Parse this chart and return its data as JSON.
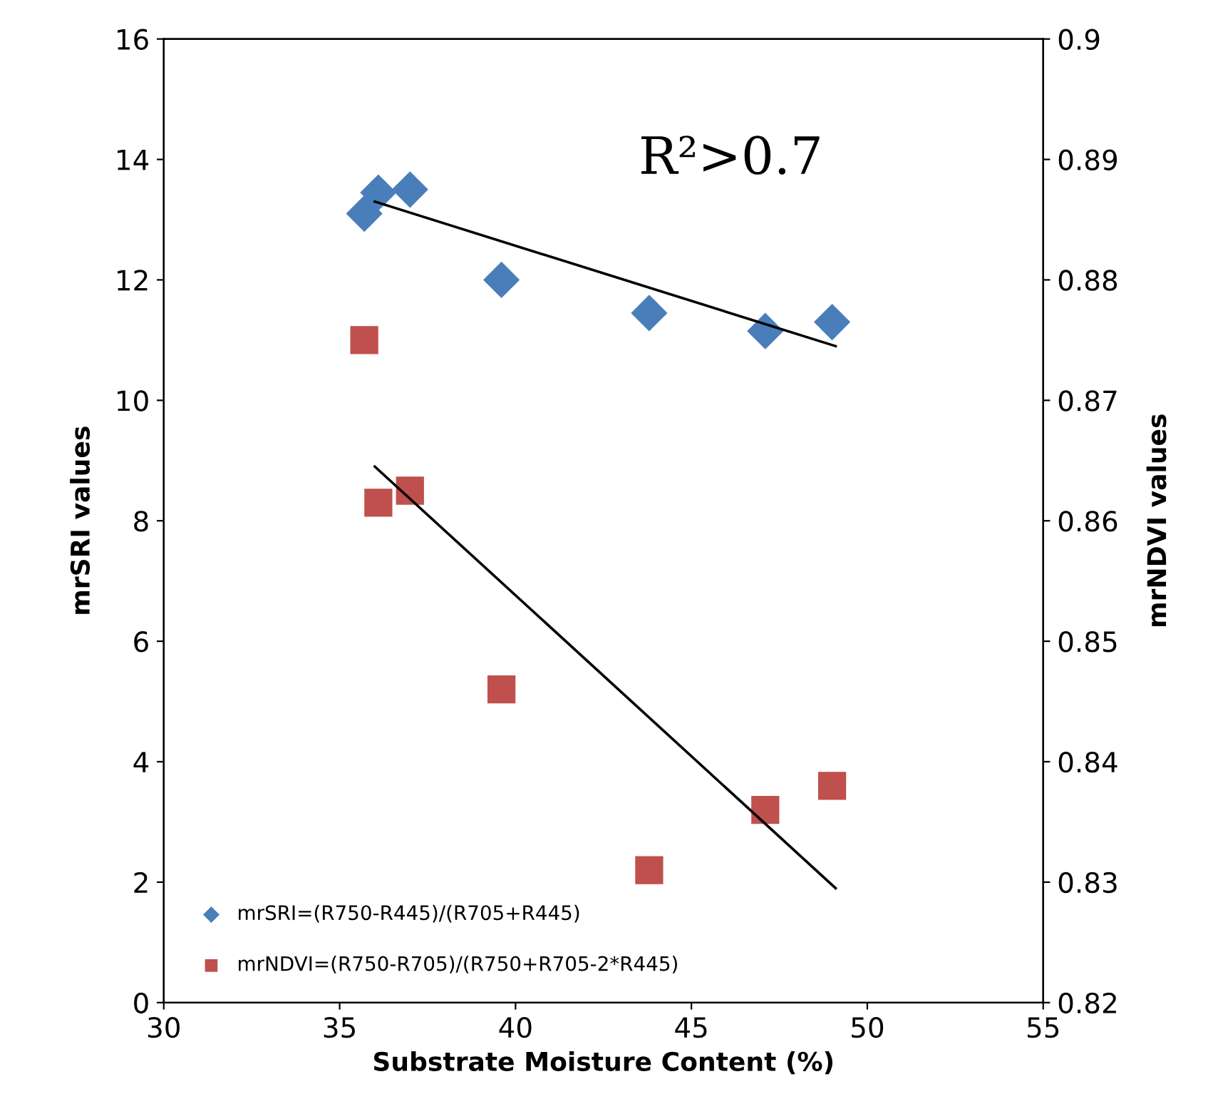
{
  "chart_data": {
    "type": "scatter",
    "xlabel": "Substrate Moisture Content (%)",
    "ylabel": "mrSRI values",
    "y2label": "mrNDVI values",
    "annotations": [
      "R²>0.7"
    ],
    "series": [
      {
        "name": "mrSRI=(R750-R445)/(R705+R445)",
        "marker": "diamond",
        "color": "#4a7ebb",
        "x": [
          35.7,
          36.1,
          37.0,
          39.6,
          43.8,
          47.1,
          49.0
        ],
        "values": [
          13.1,
          13.45,
          13.5,
          12.0,
          11.45,
          11.15,
          11.3
        ]
      },
      {
        "name": "mrNDVI=(R750-R705)/(R750+R705-2*R445)",
        "marker": "square",
        "axis": "y2",
        "color": "#c0504d",
        "x": [
          35.7,
          36.1,
          37.0,
          39.6,
          43.8,
          47.1,
          49.0
        ],
        "values": [
          0.875,
          0.8615,
          0.8625,
          0.846,
          0.831,
          0.836,
          0.838
        ]
      },
      {
        "type": "line",
        "color": "#000000",
        "x": [
          36.0,
          49.1
        ],
        "values": [
          13.3,
          10.9
        ]
      },
      {
        "type": "line",
        "axis": "y2",
        "color": "#000000",
        "x": [
          36.0,
          49.1
        ],
        "values": [
          0.8645,
          0.8295
        ]
      }
    ],
    "xlim": [
      30,
      55
    ],
    "xticks": [
      30,
      35,
      40,
      45,
      50,
      55
    ],
    "ylim": [
      0,
      16
    ],
    "yticks": [
      0,
      2,
      4,
      6,
      8,
      10,
      12,
      14,
      16
    ],
    "y2lim": [
      0.82,
      0.9
    ],
    "y2ticks": [
      0.82,
      0.83,
      0.84,
      0.85,
      0.86,
      0.87,
      0.88,
      0.89,
      0.9
    ],
    "grid": false,
    "legend": "lower left"
  }
}
